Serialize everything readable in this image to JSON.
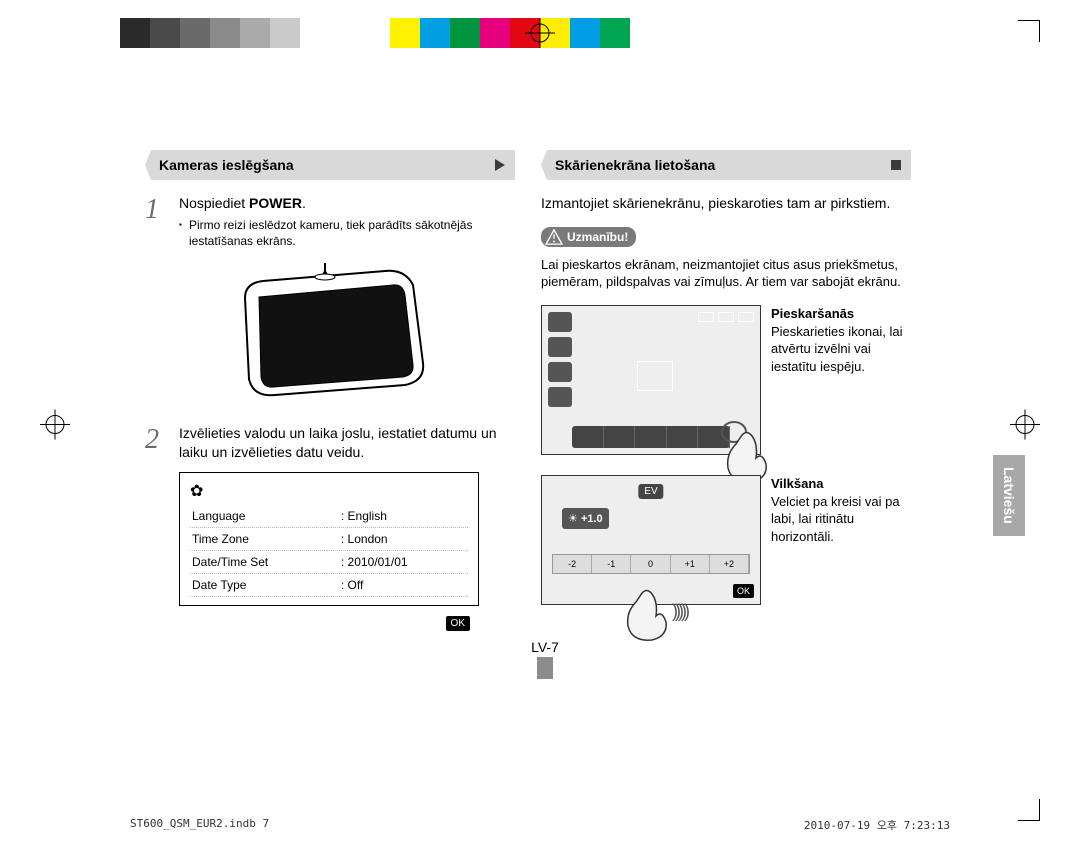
{
  "colorbar": [
    "#2a2a2a",
    "#4a4a4a",
    "#6a6a6a",
    "#8a8a8a",
    "#aaaaaa",
    "#cacaca",
    "#ffffff",
    "#ffffff",
    "#ffffff",
    "#fff200",
    "#00a0e3",
    "#009640",
    "#e6007e",
    "#e30613",
    "#ffed00",
    "#009fe3",
    "#00a651",
    "#ffffff"
  ],
  "left": {
    "heading": "Kameras ieslēgšana",
    "step1": {
      "title_pre": "Nospiediet ",
      "title_bold": "POWER",
      "title_post": ".",
      "sub": "Pirmo reizi ieslēdzot kameru, tiek parādīts sākotnējās iestatīšanas ekrāns."
    },
    "step2": "Izvēlieties valodu un laika joslu, iestatiet datumu un laiku un izvēlieties datu veidu.",
    "settings": {
      "rows": [
        {
          "k": "Language",
          "v": ": English"
        },
        {
          "k": "Time Zone",
          "v": ": London"
        },
        {
          "k": "Date/Time Set",
          "v": ": 2010/01/01"
        },
        {
          "k": "Date Type",
          "v": ": Off"
        }
      ],
      "ok": "OK"
    }
  },
  "right": {
    "heading": "Skārienekrāna lietošana",
    "intro": "Izmantojiet skārienekrānu, pieskaroties tam ar pirkstiem.",
    "caution_label": "Uzmanību!",
    "caution_text": "Lai pieskartos ekrānam, neizmantojiet citus asus priekšmetus, piemēram, pildspalvas vai zīmuļus. Ar tiem var sabojāt ekrānu.",
    "touch": {
      "title": "Pieskaršanās",
      "body": "Pieskarieties ikonai, lai atvērtu izvēlni vai iestatītu iespēju."
    },
    "drag": {
      "title": "Vilkšana",
      "body": "Velciet pa kreisi vai pa labi, lai ritinātu horizontāli.",
      "ev_label": "EV",
      "ev_value": "+1.0",
      "scale": [
        "-2",
        "-1",
        "0",
        "+1",
        "+2"
      ],
      "ok": "OK"
    }
  },
  "sidetab": "Latviešu",
  "pagenum": "LV-7",
  "footer": {
    "left": "ST600_QSM_EUR2.indb   7",
    "right": "2010-07-19   오후 7:23:13"
  }
}
